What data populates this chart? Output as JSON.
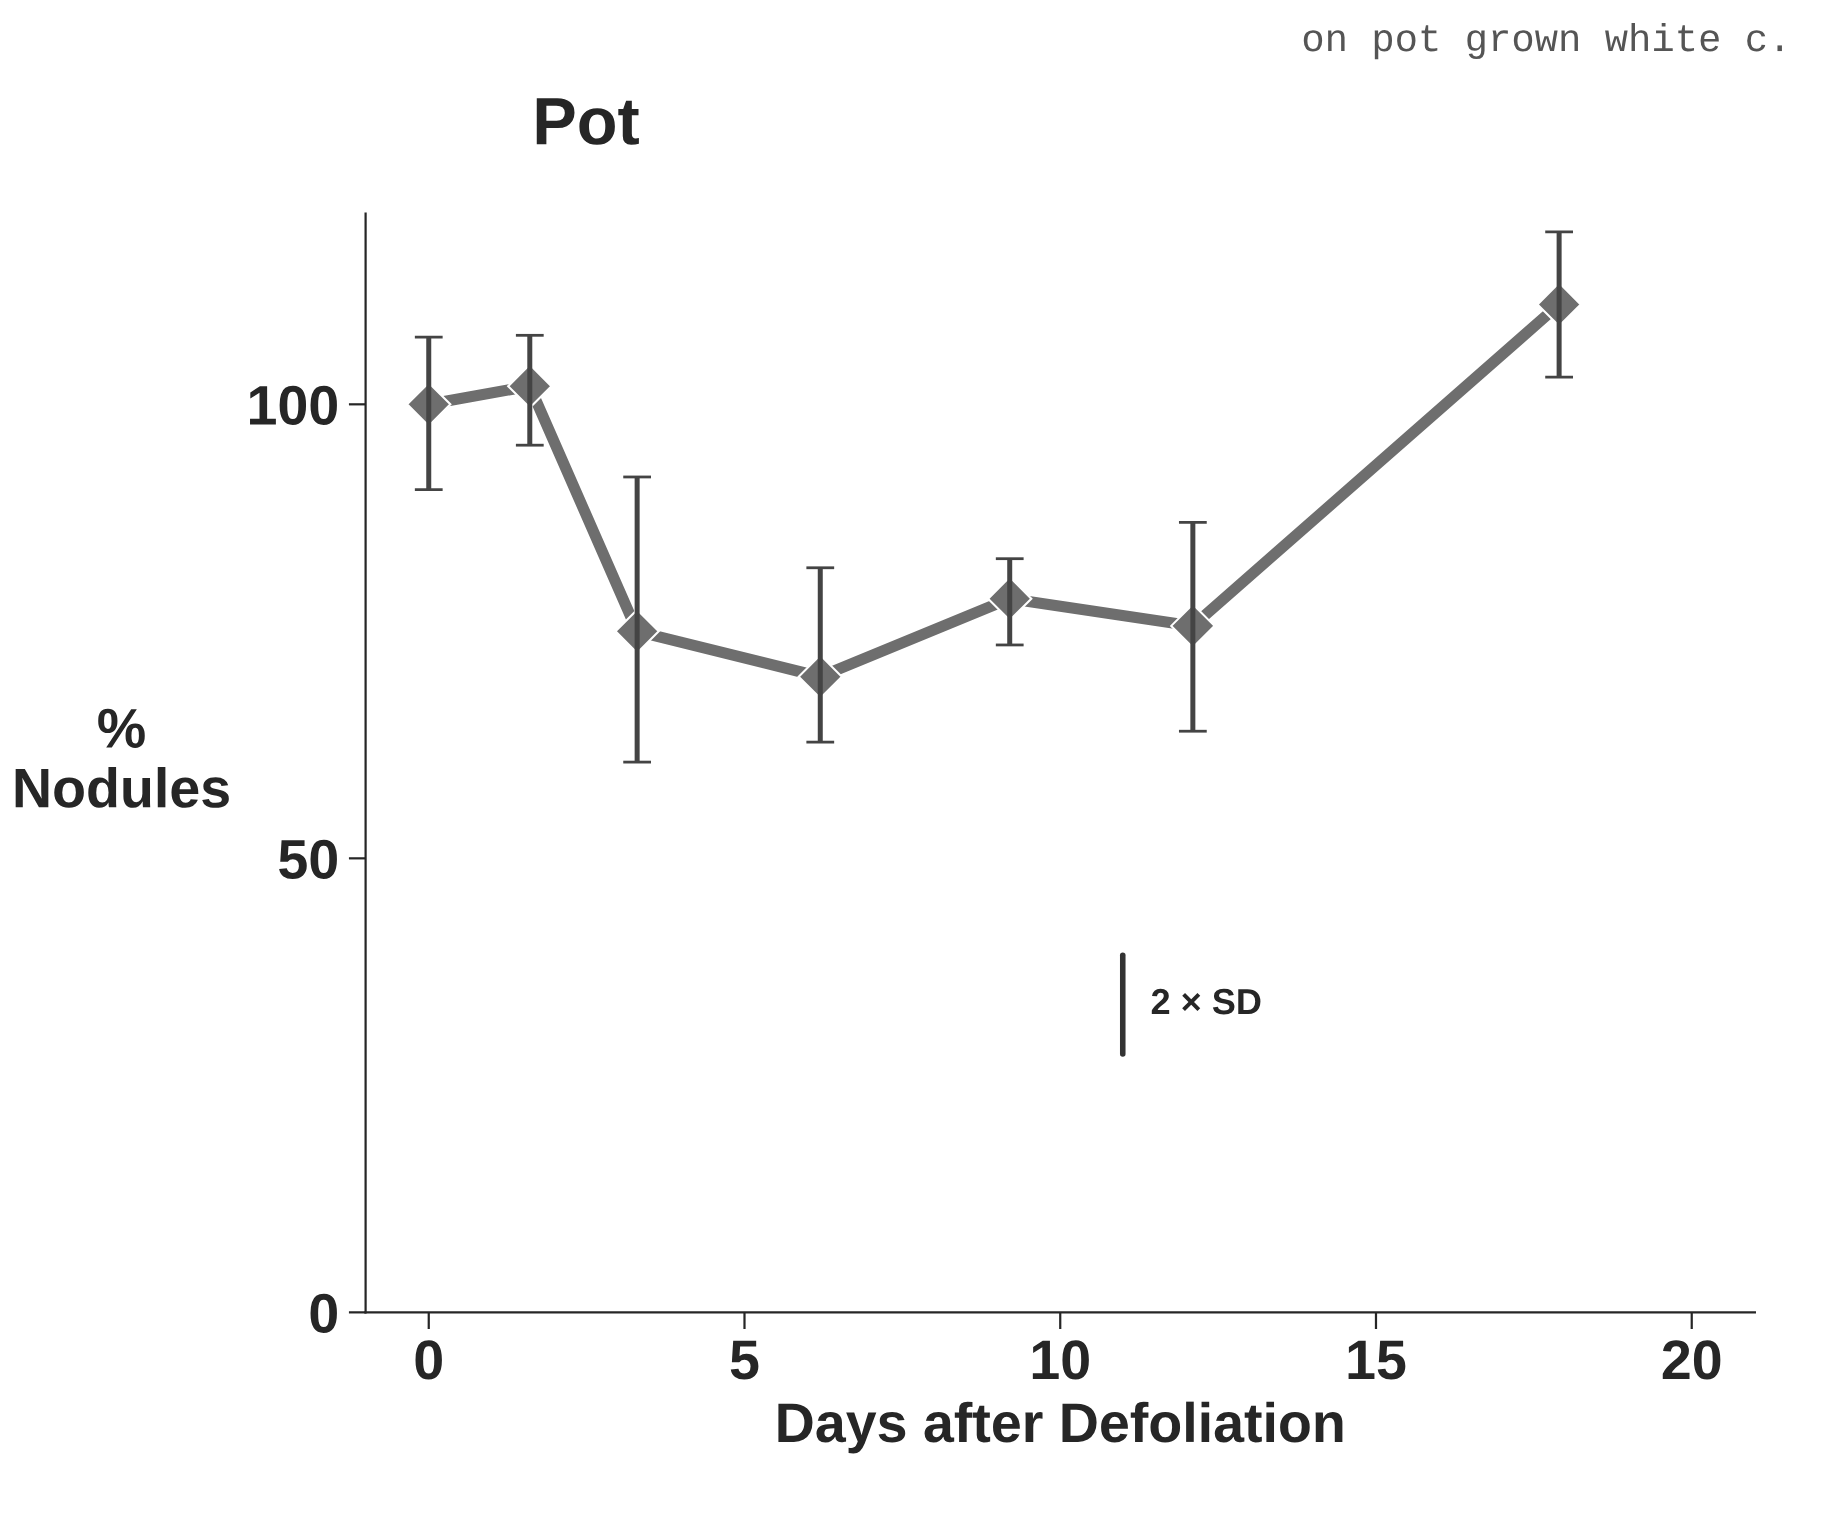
{
  "chart_data": {
    "type": "line",
    "title": "Pot",
    "xlabel": "Days after Defoliation",
    "ylabel": "%\nNodules",
    "x": [
      0,
      1.6,
      3.3,
      6.2,
      9.2,
      12.1,
      17.9
    ],
    "series": [
      {
        "color": "#6e6e6e",
        "values": [
          100,
          102,
          75,
          70,
          78.6,
          75.6,
          111
        ],
        "errors": [
          [
            90.6,
            107.4
          ],
          [
            95.5,
            107.6
          ],
          [
            60.6,
            92
          ],
          [
            62.8,
            82
          ],
          [
            73.5,
            83
          ],
          [
            64,
            87
          ],
          [
            103,
            119
          ]
        ]
      }
    ],
    "marker": "diamond",
    "line_style": "solid",
    "grid": false,
    "legend": false,
    "xlim": [
      -1,
      21
    ],
    "ylim": [
      0,
      121
    ],
    "xticks": [
      0,
      5,
      10,
      15,
      20
    ],
    "yticks": [
      0,
      50,
      100
    ],
    "annotations": [
      "2 × SD",
      "on pot grown white c."
    ]
  }
}
